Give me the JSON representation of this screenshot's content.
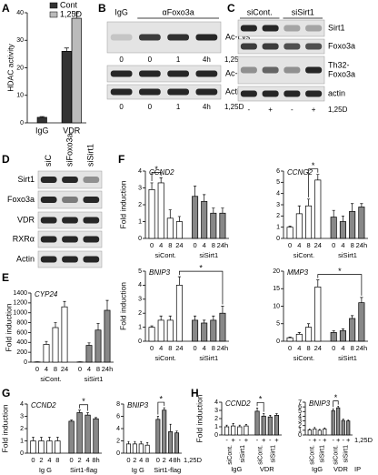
{
  "panel_labels": [
    "A",
    "B",
    "C",
    "D",
    "E",
    "F",
    "G",
    "H"
  ],
  "blots": [
    {
      "headers": [
        "IgG",
        "αFoxo3a"
      ],
      "lanes": [
        "0",
        "0",
        "1",
        "4h"
      ],
      "lane_note": "1,25D",
      "rows": [
        [
          "Ac-Lys"
        ],
        [
          "Ac-p53"
        ],
        [
          "Actin"
        ]
      ]
    },
    {
      "headers": [
        "siCont.",
        "siSirt1"
      ],
      "lanes": [
        "-",
        "+",
        "-",
        "+"
      ],
      "lane_note": "1,25D",
      "rows": [
        [
          "Sirt1"
        ],
        [
          "Foxo3a"
        ],
        [
          "Th32-",
          "Foxo3a"
        ],
        [
          "actin"
        ]
      ]
    },
    {
      "headers": [
        "siC",
        "siFoxo3a",
        "siSirt1"
      ],
      "rows": [
        [
          "Sirt1"
        ],
        [
          "Foxo3a"
        ],
        [
          "VDR"
        ],
        [
          "RXRα"
        ],
        [
          "Actin"
        ]
      ]
    }
  ],
  "chart_data": [
    {
      "type": "bar",
      "ylabel": "HDAC activity",
      "categories": [
        "IgG",
        "VDR"
      ],
      "legend": "upper right",
      "series": [
        {
          "name": "Cont",
          "color": "#333333",
          "values": [
            2,
            26
          ],
          "errors": [
            0.3,
            1.2
          ]
        },
        {
          "name": "1,25D",
          "color": "#bbbbbb",
          "values": [
            null,
            38
          ],
          "errors": [
            null,
            2
          ]
        }
      ],
      "ylim": [
        0,
        40
      ],
      "yticks": [
        0,
        10,
        20,
        30,
        40
      ]
    },
    {
      "type": "bar",
      "title": "CYP24",
      "ylabel": "Fold induction",
      "ylim": [
        0,
        1400
      ],
      "yticks": [
        0,
        200,
        400,
        600,
        800,
        1000,
        1200,
        1400
      ],
      "groups": [
        {
          "name": "siCont.",
          "color": "#ffffff",
          "categories": [
            "0",
            "4",
            "8",
            "24"
          ],
          "values": [
            5,
            360,
            700,
            1120
          ],
          "errors": [
            2,
            60,
            100,
            110
          ]
        },
        {
          "name": "siSirt1",
          "color": "#888888",
          "categories": [
            "0",
            "4",
            "8",
            "24h"
          ],
          "values": [
            5,
            340,
            650,
            1050
          ],
          "errors": [
            2,
            50,
            130,
            200
          ]
        }
      ]
    },
    {
      "type": "bar",
      "title": "CCND2",
      "ylabel": "Fold induction",
      "ylim": [
        0,
        4
      ],
      "yticks": [
        0,
        1,
        2,
        3,
        4
      ],
      "annotation": "*",
      "groups": [
        {
          "name": "siCont.",
          "color": "#ffffff",
          "categories": [
            "0",
            "4",
            "8",
            "24"
          ],
          "values": [
            2.9,
            3.3,
            1.2,
            1.0
          ],
          "errors": [
            0.4,
            0.3,
            0.5,
            0.3
          ]
        },
        {
          "name": "siSirt1",
          "color": "#888888",
          "categories": [
            "0",
            "4",
            "8",
            "24h"
          ],
          "values": [
            2.5,
            2.2,
            1.5,
            1.5
          ],
          "errors": [
            0.6,
            0.4,
            0.3,
            0.3
          ]
        }
      ]
    },
    {
      "type": "bar",
      "title": "CCNG2",
      "ylim": [
        0,
        6
      ],
      "yticks": [
        0,
        1,
        2,
        3,
        4,
        5,
        6
      ],
      "annotation": "*",
      "groups": [
        {
          "name": "siCont.",
          "color": "#ffffff",
          "categories": [
            "0",
            "4",
            "8",
            "24"
          ],
          "values": [
            1.0,
            2.2,
            2.9,
            5.2
          ],
          "errors": [
            0.1,
            0.7,
            0.6,
            0.5
          ]
        },
        {
          "name": "siSirt1",
          "color": "#888888",
          "categories": [
            "0",
            "4",
            "8",
            "24h"
          ],
          "values": [
            1.9,
            1.5,
            2.4,
            2.8
          ],
          "errors": [
            0.6,
            0.5,
            0.7,
            0.3
          ]
        }
      ]
    },
    {
      "type": "bar",
      "title": "BNIP3",
      "ylabel": "Fold induction",
      "ylim": [
        0,
        5
      ],
      "yticks": [
        0,
        1,
        2,
        3,
        4,
        5
      ],
      "annotation": "*",
      "groups": [
        {
          "name": "siCont.",
          "color": "#ffffff",
          "categories": [
            "0",
            "4",
            "8",
            "24"
          ],
          "values": [
            1.0,
            1.5,
            1.5,
            4.0
          ],
          "errors": [
            0.1,
            0.3,
            0.3,
            0.6
          ]
        },
        {
          "name": "siSirt1",
          "color": "#888888",
          "categories": [
            "0",
            "4",
            "8",
            "24h"
          ],
          "values": [
            1.5,
            1.3,
            1.5,
            2.0
          ],
          "errors": [
            0.3,
            0.2,
            0.3,
            0.5
          ]
        }
      ]
    },
    {
      "type": "bar",
      "title": "MMP3",
      "ylim": [
        0,
        20
      ],
      "yticks": [
        0,
        5,
        10,
        15,
        20
      ],
      "annotation": "*",
      "groups": [
        {
          "name": "siCont.",
          "color": "#ffffff",
          "categories": [
            "0",
            "4",
            "8",
            "24"
          ],
          "values": [
            1,
            2,
            4,
            15.5
          ],
          "errors": [
            0.2,
            0.5,
            1,
            2
          ]
        },
        {
          "name": "siSirt1",
          "color": "#888888",
          "categories": [
            "0",
            "4",
            "8",
            "24h"
          ],
          "values": [
            2.5,
            3,
            6.5,
            11
          ],
          "errors": [
            0.5,
            0.5,
            0.8,
            1.5
          ]
        }
      ]
    },
    {
      "type": "bar",
      "title": "CCND2",
      "ylabel": "Fold induction",
      "ylim": [
        0,
        4
      ],
      "yticks": [
        0,
        1,
        2,
        3,
        4
      ],
      "annotation": "*",
      "groups": [
        {
          "name": "Ig G",
          "color": "#ffffff",
          "categories": [
            "0",
            "2",
            "4",
            "8"
          ],
          "values": [
            1,
            1,
            1,
            1
          ],
          "errors": [
            0.3,
            0.3,
            0.3,
            0.3
          ]
        },
        {
          "name": "Sirt1-flag",
          "color": "#888888",
          "categories": [
            "0",
            "2",
            "4",
            "8h"
          ],
          "values": [
            2.6,
            3.3,
            3.1,
            2.8
          ],
          "errors": [
            0.1,
            0.2,
            0.2,
            0.1
          ]
        }
      ]
    },
    {
      "type": "bar",
      "title": "BNIP3",
      "ylim": [
        0,
        8
      ],
      "yticks": [
        0,
        2,
        4,
        6,
        8
      ],
      "annotation": "*",
      "x_notes": [
        "1,25D"
      ],
      "groups": [
        {
          "name": "Ig G",
          "color": "#ffffff",
          "categories": [
            "0",
            "2",
            "4",
            "8"
          ],
          "values": [
            1.5,
            1.5,
            1.5,
            1.3
          ],
          "errors": [
            0.4,
            0.4,
            0.4,
            0.4
          ]
        },
        {
          "name": "Sirt1-flag",
          "color": "#888888",
          "categories": [
            "0",
            "2",
            "4",
            "8h"
          ],
          "values": [
            5.5,
            7,
            3.5,
            3.3
          ],
          "errors": [
            0.5,
            0.4,
            1.2,
            0.3
          ]
        }
      ]
    },
    {
      "type": "bar",
      "title": "CCND2",
      "ylabel": "Fold induction",
      "ylim": [
        0,
        4
      ],
      "yticks": [
        0,
        1,
        2,
        3,
        4
      ],
      "annotation": "*",
      "groups": [
        {
          "name": "IgG",
          "color": "#ffffff",
          "categories": [
            "-",
            "+",
            "-",
            "+"
          ],
          "sublabels": [
            "siCont.",
            "siSirt1"
          ],
          "values": [
            1,
            1.1,
            1,
            1.1
          ],
          "errors": [
            0.2,
            0.3,
            0.2,
            0.2
          ]
        },
        {
          "name": "VDR",
          "color": "#888888",
          "categories": [
            "-",
            "+",
            "-",
            "+"
          ],
          "sublabels": [
            "siCont.",
            "siSirt1"
          ],
          "values": [
            2.9,
            2.3,
            2.2,
            2.4
          ],
          "errors": [
            0.4,
            0.3,
            0.2,
            0.2
          ]
        }
      ]
    },
    {
      "type": "bar",
      "title": "BNIP3",
      "ylim": [
        0,
        7
      ],
      "yticks": [
        0,
        1,
        2,
        3,
        4,
        5,
        6,
        7
      ],
      "annotation": "*",
      "x_notes": [
        "1,25D",
        "IP"
      ],
      "groups": [
        {
          "name": "IgG",
          "color": "#ffffff",
          "categories": [
            "-",
            "+",
            "-",
            "+"
          ],
          "sublabels": [
            "siCont.",
            "siSirt1"
          ],
          "values": [
            1.1,
            1.3,
            1.0,
            1.3
          ],
          "errors": [
            0.2,
            0.3,
            0.2,
            0.2
          ]
        },
        {
          "name": "VDR",
          "color": "#888888",
          "categories": [
            "-",
            "+",
            "-",
            "+"
          ],
          "sublabels": [
            "siCont.",
            "siSirt1"
          ],
          "values": [
            5.2,
            5.8,
            3.1,
            3.0
          ],
          "errors": [
            0.4,
            0.3,
            0.3,
            0.2
          ]
        }
      ]
    }
  ]
}
